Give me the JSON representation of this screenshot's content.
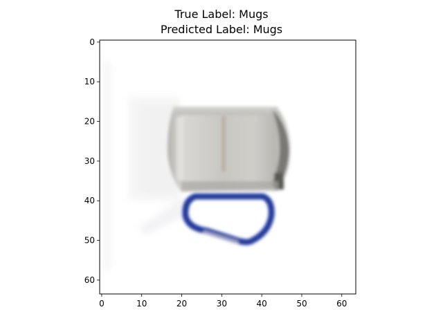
{
  "figure": {
    "title_lines": [
      "True Label: Mugs",
      "Predicted Label: Mugs"
    ],
    "image_subject": "blurry low-resolution photo of a stainless steel mug with a blue carabiner handle",
    "x_ticks": [
      "0",
      "10",
      "20",
      "30",
      "40",
      "50",
      "60"
    ],
    "y_ticks": [
      "0",
      "10",
      "20",
      "30",
      "40",
      "50",
      "60"
    ],
    "colors": {
      "background": "#ffffff",
      "mug_body": "#c8c7c2",
      "mug_shadow": "#6d6b66",
      "handle": "#2c44a8"
    }
  }
}
